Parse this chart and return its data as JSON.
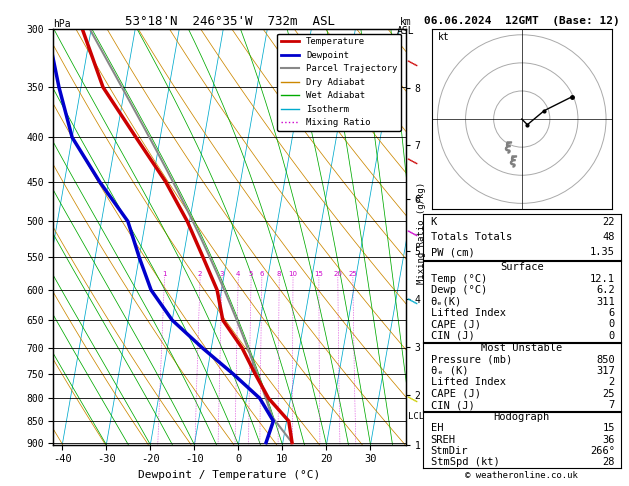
{
  "title_left": "53°18'N  246°35'W  732m  ASL",
  "title_right": "06.06.2024  12GMT  (Base: 12)",
  "xlabel": "Dewpoint / Temperature (°C)",
  "pressure_ticks": [
    300,
    350,
    400,
    450,
    500,
    550,
    600,
    650,
    700,
    750,
    800,
    850,
    900
  ],
  "xlim": [
    -42,
    38
  ],
  "pmin": 300,
  "pmax": 905,
  "temp_color": "#cc0000",
  "dewp_color": "#0000cc",
  "parcel_color": "#888888",
  "dry_adiabat_color": "#cc8800",
  "wet_adiabat_color": "#00aa00",
  "isotherm_color": "#00aacc",
  "mixing_ratio_color": "#cc00cc",
  "skew": 15.0,
  "stats": {
    "K": 22,
    "Totals_Totals": 48,
    "PW_cm": 1.35,
    "Surface_Temp": 12.1,
    "Surface_Dewp": 6.2,
    "Surface_Theta_e": 311,
    "Surface_LI": 6,
    "Surface_CAPE": 0,
    "Surface_CIN": 0,
    "MU_Pressure": 850,
    "MU_Theta_e": 317,
    "MU_LI": 2,
    "MU_CAPE": 25,
    "MU_CIN": 7,
    "EH": 15,
    "SREH": 36,
    "StmDir": 266,
    "StmSpd": 28
  },
  "km_ticks": [
    1,
    2,
    3,
    4,
    5,
    6,
    7,
    8
  ],
  "km_pressures": [
    907,
    795,
    700,
    616,
    541,
    472,
    408,
    351
  ],
  "mixing_ratio_values": [
    1,
    2,
    3,
    4,
    5,
    6,
    8,
    10,
    15,
    20,
    25
  ],
  "lcl_pressure": 840,
  "temp_profile_p": [
    900,
    850,
    800,
    750,
    700,
    650,
    600,
    550,
    500,
    450,
    400,
    350,
    300
  ],
  "temp_profile_T": [
    12.1,
    10.5,
    5.0,
    1.0,
    -3.0,
    -8.5,
    -11.0,
    -15.5,
    -20.5,
    -27.0,
    -35.5,
    -45.0,
    -52.0
  ],
  "dewp_profile_p": [
    900,
    850,
    800,
    750,
    700,
    650,
    600,
    550,
    500,
    450,
    400,
    350,
    300
  ],
  "dewp_profile_T": [
    6.2,
    7.0,
    3.0,
    -4.0,
    -12.0,
    -20.0,
    -26.0,
    -30.0,
    -34.0,
    -42.0,
    -50.0,
    -55.0,
    -60.0
  ],
  "hodo_u": [
    0,
    2,
    8,
    18
  ],
  "hodo_v": [
    0,
    -2,
    3,
    8
  ],
  "hodo_u_low": [
    -5,
    -3
  ],
  "hodo_v_low": [
    -10,
    -15
  ],
  "wind_barb_colors": [
    "#cc0000",
    "#cc0000",
    "#cc00cc",
    "#00aacc",
    "#cccc00"
  ],
  "wind_barb_pressures": [
    0.87,
    0.67,
    0.52,
    0.38,
    0.18
  ]
}
